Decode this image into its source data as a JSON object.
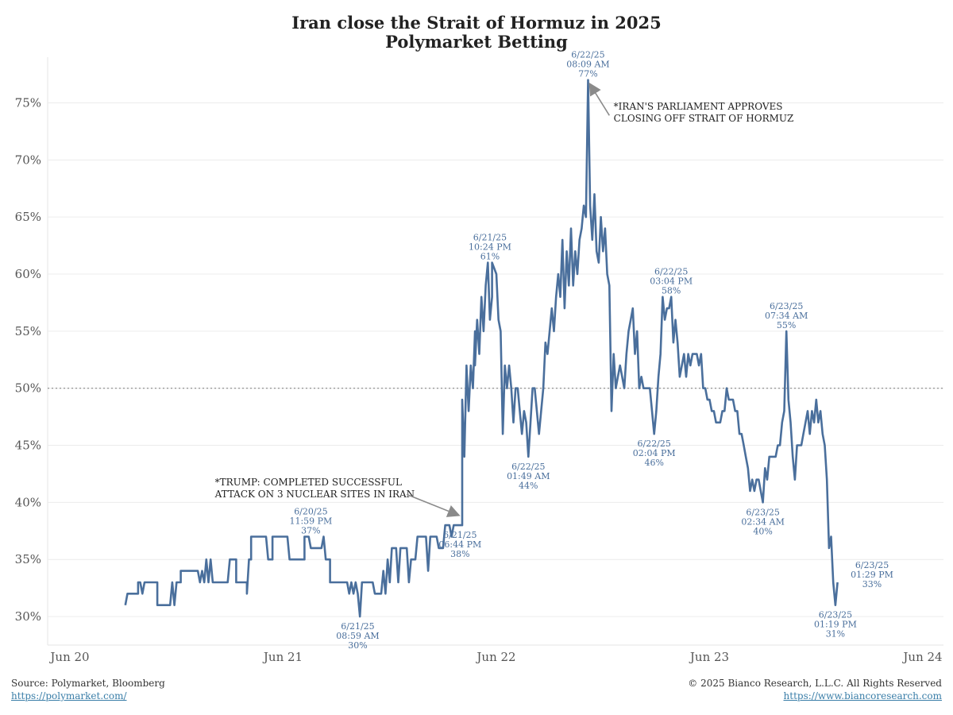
{
  "chart_data": {
    "type": "line",
    "title": [
      "Iran close the Strait of Hormuz in 2025",
      "Polymarket Betting"
    ],
    "xlabel": "",
    "ylabel": "",
    "ylim": [
      27.5,
      79
    ],
    "yticks": [
      30,
      35,
      40,
      45,
      50,
      55,
      60,
      65,
      70,
      75
    ],
    "ytick_labels": [
      "30%",
      "35%",
      "40%",
      "45%",
      "50%",
      "55%",
      "60%",
      "65%",
      "70%",
      "75%"
    ],
    "xlim": [
      0,
      4
    ],
    "xticks": [
      0,
      1,
      2,
      3,
      4
    ],
    "xtick_labels": [
      "Jun 20",
      "Jun 21",
      "Jun 22",
      "Jun 23",
      "Jun 24"
    ],
    "reference_line": {
      "y": 50,
      "style": "dotted"
    },
    "grid": "horizontal",
    "series": [
      {
        "color": "#4a6f9c",
        "points": [
          [
            0.26,
            31
          ],
          [
            0.27,
            32
          ],
          [
            0.32,
            32
          ],
          [
            0.32,
            33
          ],
          [
            0.33,
            33
          ],
          [
            0.34,
            32
          ],
          [
            0.35,
            33
          ],
          [
            0.41,
            33
          ],
          [
            0.41,
            31
          ],
          [
            0.47,
            31
          ],
          [
            0.48,
            33
          ],
          [
            0.49,
            31
          ],
          [
            0.5,
            33
          ],
          [
            0.52,
            33
          ],
          [
            0.52,
            34
          ],
          [
            0.6,
            34
          ],
          [
            0.61,
            33
          ],
          [
            0.62,
            34
          ],
          [
            0.63,
            33
          ],
          [
            0.64,
            35
          ],
          [
            0.65,
            33
          ],
          [
            0.66,
            35
          ],
          [
            0.67,
            33
          ],
          [
            0.74,
            33
          ],
          [
            0.75,
            35
          ],
          [
            0.78,
            35
          ],
          [
            0.78,
            33
          ],
          [
            0.8,
            33
          ],
          [
            0.83,
            33
          ],
          [
            0.83,
            32
          ],
          [
            0.84,
            35
          ],
          [
            0.85,
            35
          ],
          [
            0.85,
            37
          ],
          [
            0.92,
            37
          ],
          [
            0.93,
            35
          ],
          [
            0.95,
            35
          ],
          [
            0.95,
            37
          ],
          [
            1.02,
            37
          ],
          [
            1.03,
            35
          ],
          [
            1.1,
            35
          ],
          [
            1.1,
            37
          ],
          [
            1.12,
            37
          ],
          [
            1.13,
            36
          ],
          [
            1.14,
            36
          ],
          [
            1.18,
            36
          ],
          [
            1.19,
            37
          ],
          [
            1.2,
            35
          ],
          [
            1.22,
            35
          ],
          [
            1.22,
            33
          ],
          [
            1.3,
            33
          ],
          [
            1.31,
            32
          ],
          [
            1.32,
            33
          ],
          [
            1.33,
            32
          ],
          [
            1.34,
            33
          ],
          [
            1.35,
            32
          ],
          [
            1.36,
            30
          ],
          [
            1.37,
            33
          ],
          [
            1.42,
            33
          ],
          [
            1.43,
            32
          ],
          [
            1.46,
            32
          ],
          [
            1.47,
            34
          ],
          [
            1.48,
            32
          ],
          [
            1.49,
            35
          ],
          [
            1.5,
            33
          ],
          [
            1.51,
            36
          ],
          [
            1.53,
            36
          ],
          [
            1.54,
            33
          ],
          [
            1.55,
            36
          ],
          [
            1.58,
            36
          ],
          [
            1.59,
            33
          ],
          [
            1.6,
            35
          ],
          [
            1.62,
            35
          ],
          [
            1.63,
            37
          ],
          [
            1.67,
            37
          ],
          [
            1.68,
            34
          ],
          [
            1.69,
            37
          ],
          [
            1.72,
            37
          ],
          [
            1.73,
            36
          ],
          [
            1.75,
            36
          ],
          [
            1.76,
            38
          ],
          [
            1.78,
            38
          ],
          [
            1.79,
            37
          ],
          [
            1.8,
            38
          ],
          [
            1.82,
            38
          ],
          [
            1.84,
            38
          ],
          [
            1.84,
            49
          ],
          [
            1.85,
            44
          ],
          [
            1.86,
            52
          ],
          [
            1.87,
            48
          ],
          [
            1.88,
            52
          ],
          [
            1.89,
            50
          ],
          [
            1.9,
            55
          ],
          [
            1.9,
            52
          ],
          [
            1.91,
            56
          ],
          [
            1.92,
            53
          ],
          [
            1.93,
            58
          ],
          [
            1.94,
            55
          ],
          [
            1.95,
            59
          ],
          [
            1.96,
            61
          ],
          [
            1.97,
            56
          ],
          [
            1.98,
            58
          ],
          [
            1.98,
            61
          ],
          [
            2.0,
            60
          ],
          [
            2.01,
            56
          ],
          [
            2.02,
            55
          ],
          [
            2.03,
            46
          ],
          [
            2.04,
            52
          ],
          [
            2.05,
            50
          ],
          [
            2.06,
            52
          ],
          [
            2.07,
            50
          ],
          [
            2.08,
            47
          ],
          [
            2.09,
            50
          ],
          [
            2.1,
            50
          ],
          [
            2.11,
            48
          ],
          [
            2.12,
            46
          ],
          [
            2.13,
            48
          ],
          [
            2.14,
            47
          ],
          [
            2.15,
            44
          ],
          [
            2.16,
            47
          ],
          [
            2.17,
            50
          ],
          [
            2.18,
            50
          ],
          [
            2.19,
            48
          ],
          [
            2.2,
            46
          ],
          [
            2.21,
            48
          ],
          [
            2.22,
            50
          ],
          [
            2.23,
            54
          ],
          [
            2.24,
            53
          ],
          [
            2.25,
            55
          ],
          [
            2.26,
            57
          ],
          [
            2.27,
            55
          ],
          [
            2.28,
            58
          ],
          [
            2.29,
            60
          ],
          [
            2.3,
            58
          ],
          [
            2.31,
            63
          ],
          [
            2.32,
            57
          ],
          [
            2.33,
            62
          ],
          [
            2.34,
            59
          ],
          [
            2.35,
            64
          ],
          [
            2.36,
            59
          ],
          [
            2.37,
            62
          ],
          [
            2.38,
            60
          ],
          [
            2.39,
            63
          ],
          [
            2.4,
            64
          ],
          [
            2.41,
            66
          ],
          [
            2.42,
            65
          ],
          [
            2.43,
            77
          ],
          [
            2.44,
            66
          ],
          [
            2.45,
            63
          ],
          [
            2.46,
            67
          ],
          [
            2.47,
            62
          ],
          [
            2.48,
            61
          ],
          [
            2.49,
            65
          ],
          [
            2.5,
            62
          ],
          [
            2.51,
            64
          ],
          [
            2.52,
            60
          ],
          [
            2.53,
            59
          ],
          [
            2.54,
            48
          ],
          [
            2.55,
            53
          ],
          [
            2.56,
            50
          ],
          [
            2.57,
            51
          ],
          [
            2.58,
            52
          ],
          [
            2.59,
            51
          ],
          [
            2.6,
            50
          ],
          [
            2.61,
            53
          ],
          [
            2.62,
            55
          ],
          [
            2.63,
            56
          ],
          [
            2.64,
            57
          ],
          [
            2.65,
            53
          ],
          [
            2.66,
            55
          ],
          [
            2.67,
            50
          ],
          [
            2.68,
            51
          ],
          [
            2.69,
            50
          ],
          [
            2.7,
            50
          ],
          [
            2.71,
            50
          ],
          [
            2.72,
            50
          ],
          [
            2.73,
            48
          ],
          [
            2.74,
            46
          ],
          [
            2.75,
            48
          ],
          [
            2.76,
            51
          ],
          [
            2.77,
            53
          ],
          [
            2.78,
            58
          ],
          [
            2.79,
            56
          ],
          [
            2.8,
            57
          ],
          [
            2.81,
            57
          ],
          [
            2.82,
            58
          ],
          [
            2.83,
            54
          ],
          [
            2.84,
            56
          ],
          [
            2.85,
            54
          ],
          [
            2.86,
            51
          ],
          [
            2.87,
            52
          ],
          [
            2.88,
            53
          ],
          [
            2.89,
            51
          ],
          [
            2.9,
            53
          ],
          [
            2.91,
            52
          ],
          [
            2.92,
            53
          ],
          [
            2.93,
            53
          ],
          [
            2.94,
            53
          ],
          [
            2.95,
            52
          ],
          [
            2.96,
            53
          ],
          [
            2.97,
            50
          ],
          [
            2.98,
            50
          ],
          [
            2.99,
            49
          ],
          [
            3.0,
            49
          ],
          [
            3.01,
            48
          ],
          [
            3.02,
            48
          ],
          [
            3.03,
            47
          ],
          [
            3.04,
            47
          ],
          [
            3.05,
            47
          ],
          [
            3.06,
            48
          ],
          [
            3.07,
            48
          ],
          [
            3.08,
            50
          ],
          [
            3.09,
            49
          ],
          [
            3.1,
            49
          ],
          [
            3.11,
            49
          ],
          [
            3.12,
            48
          ],
          [
            3.13,
            48
          ],
          [
            3.14,
            46
          ],
          [
            3.15,
            46
          ],
          [
            3.16,
            45
          ],
          [
            3.17,
            44
          ],
          [
            3.18,
            43
          ],
          [
            3.19,
            41
          ],
          [
            3.2,
            42
          ],
          [
            3.21,
            41
          ],
          [
            3.22,
            42
          ],
          [
            3.23,
            42
          ],
          [
            3.24,
            41
          ],
          [
            3.25,
            40
          ],
          [
            3.26,
            43
          ],
          [
            3.27,
            42
          ],
          [
            3.28,
            44
          ],
          [
            3.29,
            44
          ],
          [
            3.3,
            44
          ],
          [
            3.31,
            44
          ],
          [
            3.32,
            45
          ],
          [
            3.33,
            45
          ],
          [
            3.34,
            47
          ],
          [
            3.35,
            48
          ],
          [
            3.36,
            55
          ],
          [
            3.37,
            49
          ],
          [
            3.38,
            47
          ],
          [
            3.39,
            44
          ],
          [
            3.4,
            42
          ],
          [
            3.41,
            45
          ],
          [
            3.42,
            45
          ],
          [
            3.43,
            45
          ],
          [
            3.44,
            46
          ],
          [
            3.45,
            47
          ],
          [
            3.46,
            48
          ],
          [
            3.47,
            46
          ],
          [
            3.48,
            48
          ],
          [
            3.49,
            47
          ],
          [
            3.5,
            49
          ],
          [
            3.51,
            47
          ],
          [
            3.52,
            48
          ],
          [
            3.53,
            46
          ],
          [
            3.54,
            45
          ],
          [
            3.55,
            42
          ],
          [
            3.56,
            36
          ],
          [
            3.57,
            37
          ],
          [
            3.58,
            33
          ],
          [
            3.59,
            31
          ],
          [
            3.6,
            33
          ]
        ]
      }
    ],
    "annotations": [
      {
        "x": 1.13,
        "y": 37,
        "lines": [
          "6/20/25",
          "11:59 PM",
          "37%"
        ],
        "pos": "above"
      },
      {
        "x": 1.35,
        "y": 30,
        "lines": [
          "6/21/25",
          "08:59 AM",
          "30%"
        ],
        "pos": "below"
      },
      {
        "x": 1.83,
        "y": 38,
        "lines": [
          "6/21/25",
          "06:44 PM",
          "38%"
        ],
        "pos": "below"
      },
      {
        "x": 1.97,
        "y": 61,
        "lines": [
          "6/21/25",
          "10:24 PM",
          "61%"
        ],
        "pos": "above"
      },
      {
        "x": 2.15,
        "y": 44,
        "lines": [
          "6/22/25",
          "01:49 AM",
          "44%"
        ],
        "pos": "below"
      },
      {
        "x": 2.43,
        "y": 77,
        "lines": [
          "6/22/25",
          "08:09 AM",
          "77%"
        ],
        "pos": "above"
      },
      {
        "x": 2.74,
        "y": 46,
        "lines": [
          "6/22/25",
          "02:04 PM",
          "46%"
        ],
        "pos": "below"
      },
      {
        "x": 2.82,
        "y": 58,
        "lines": [
          "6/22/25",
          "03:04 PM",
          "58%"
        ],
        "pos": "above"
      },
      {
        "x": 3.25,
        "y": 40,
        "lines": [
          "6/23/25",
          "02:34 AM",
          "40%"
        ],
        "pos": "below"
      },
      {
        "x": 3.36,
        "y": 55,
        "lines": [
          "6/23/25",
          "07:34 AM",
          "55%"
        ],
        "pos": "above"
      },
      {
        "x": 3.59,
        "y": 31,
        "lines": [
          "6/23/25",
          "01:19 PM",
          "31%"
        ],
        "pos": "below"
      },
      {
        "x": 3.65,
        "y": 33,
        "lines": [
          "6/23/25",
          "01:29 PM",
          "33%"
        ],
        "pos": "right"
      }
    ],
    "callouts": [
      {
        "lines": [
          "*TRUMP: COMPLETED SUCCESSFUL",
          "ATTACK ON 3 NUCLEAR SITES IN IRAN"
        ],
        "text_x": 0.68,
        "text_y": 41.5,
        "arrow_from": [
          1.58,
          40.7
        ],
        "arrow_to": [
          1.82,
          38.9
        ]
      },
      {
        "lines": [
          "*IRAN'S PARLIAMENT APPROVES",
          "CLOSING OFF STRAIT OF HORMUZ"
        ],
        "text_x": 2.55,
        "text_y": 74.4,
        "arrow_from": [
          2.53,
          73.9
        ],
        "arrow_to": [
          2.44,
          76.6
        ]
      }
    ]
  },
  "footer": {
    "source": "Source: Polymarket, Bloomberg",
    "source_link": "https://polymarket.com/",
    "copyright": "© 2025 Bianco Research, L.L.C. All Rights Reserved",
    "site_link": "https://www.biancoresearch.com"
  }
}
